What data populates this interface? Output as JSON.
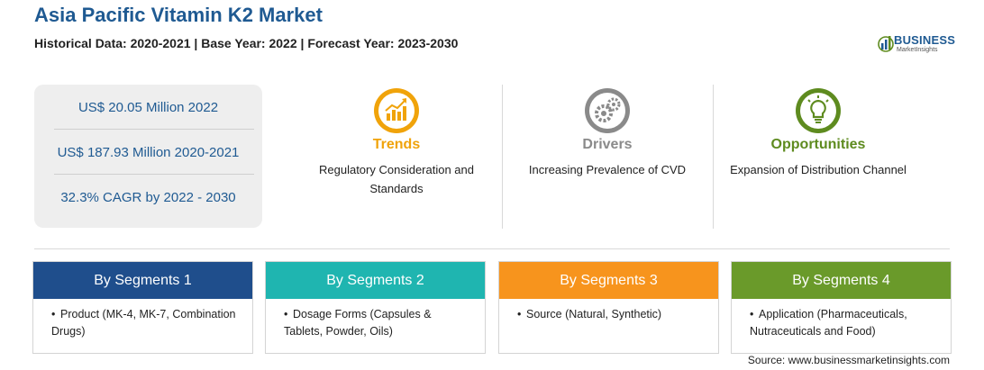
{
  "header": {
    "title": "Asia Pacific Vitamin K2 Market",
    "subtitle": "Historical Data: 2020-2021 | Base Year: 2022 | Forecast Year: 2023-2030"
  },
  "logo": {
    "word": "BUSINESS",
    "tagline": "MarketInsights",
    "icon": "bar-chart-globe-icon"
  },
  "stats": [
    "US$ 20.05 Million 2022",
    "US$ 187.93 Million 2020-2021",
    "32.3% CAGR by 2022 - 2030"
  ],
  "columns": [
    {
      "heading": "Trends",
      "icon": "trend-chart-icon",
      "color": "#f0a30a",
      "text": "Regulatory Consideration and Standards"
    },
    {
      "heading": "Drivers",
      "icon": "gears-icon",
      "color": "#8a8a8a",
      "text": "Increasing Prevalence of CVD"
    },
    {
      "heading": "Opportunities",
      "icon": "lightbulb-icon",
      "color": "#5e8b1f",
      "text": "Expansion of Distribution Channel"
    }
  ],
  "segments": [
    {
      "title": "By Segments 1",
      "color": "#1f4e8c",
      "item": "Product (MK-4, MK-7, Combination Drugs)"
    },
    {
      "title": "By Segments 2",
      "color": "#1fb5b0",
      "item": "Dosage Forms (Capsules & Tablets, Powder, Oils)"
    },
    {
      "title": "By Segments 3",
      "color": "#f7941d",
      "item": "Source (Natural, Synthetic)"
    },
    {
      "title": "By Segments 4",
      "color": "#6a9a2a",
      "item": "Application (Pharmaceuticals, Nutraceuticals and Food)"
    }
  ],
  "source": "Source: www.businessmarketinsights.com"
}
